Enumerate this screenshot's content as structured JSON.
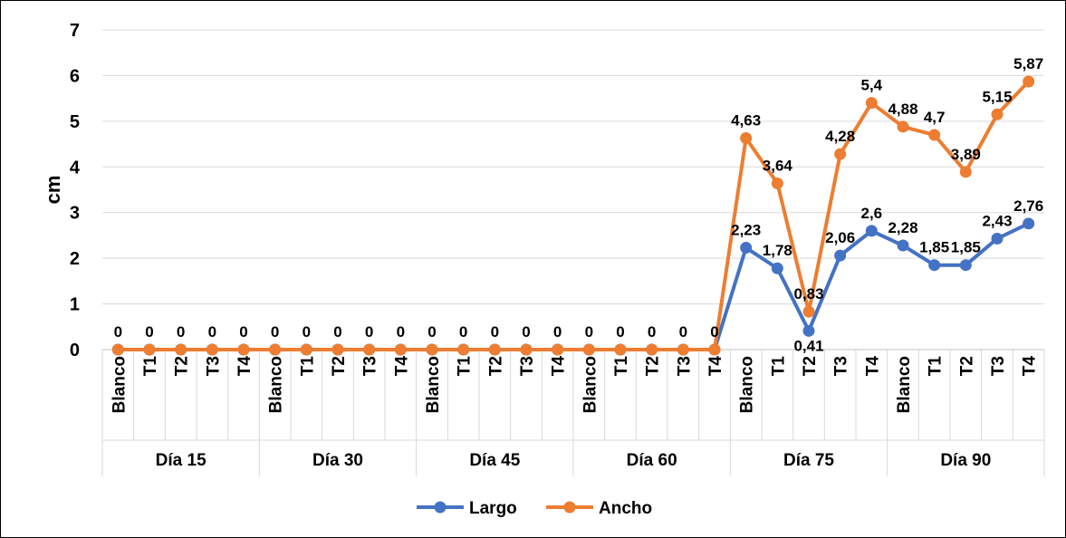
{
  "chart_data": {
    "type": "line",
    "ylabel": "cm",
    "ylim": [
      0,
      7
    ],
    "yticks": [
      0,
      1,
      2,
      3,
      4,
      5,
      6,
      7
    ],
    "grid": "horizontal",
    "legend_position": "bottom",
    "groups": [
      {
        "label": "Día 15",
        "categories": [
          "Blanco",
          "T1",
          "T2",
          "T3",
          "T4"
        ]
      },
      {
        "label": "Día 30",
        "categories": [
          "Blanco",
          "T1",
          "T2",
          "T3",
          "T4"
        ]
      },
      {
        "label": "Día 45",
        "categories": [
          "Blanco",
          "T1",
          "T2",
          "T3",
          "T4"
        ]
      },
      {
        "label": "Día 60",
        "categories": [
          "Blanco",
          "T1",
          "T2",
          "T3",
          "T4"
        ]
      },
      {
        "label": "Día 75",
        "categories": [
          "Blanco",
          "T1",
          "T2",
          "T3",
          "T4"
        ]
      },
      {
        "label": "Día 90",
        "categories": [
          "Blanco",
          "T1",
          "T2",
          "T3",
          "T4"
        ]
      }
    ],
    "series": [
      {
        "name": "Largo",
        "color": "#4472C4",
        "values": [
          0,
          0,
          0,
          0,
          0,
          0,
          0,
          0,
          0,
          0,
          0,
          0,
          0,
          0,
          0,
          0,
          0,
          0,
          0,
          0,
          2.23,
          1.78,
          0.41,
          2.06,
          2.6,
          2.28,
          1.85,
          1.85,
          2.43,
          2.76
        ],
        "labels": [
          "",
          "",
          "",
          "",
          "",
          "",
          "",
          "",
          "",
          "",
          "",
          "",
          "",
          "",
          "",
          "",
          "",
          "",
          "",
          "",
          "2,23",
          "1,78",
          "0,41",
          "2,06",
          "2,6",
          "2,28",
          "1,85",
          "1,85",
          "2,43",
          "2,76"
        ]
      },
      {
        "name": "Ancho",
        "color": "#ED7D31",
        "values": [
          0,
          0,
          0,
          0,
          0,
          0,
          0,
          0,
          0,
          0,
          0,
          0,
          0,
          0,
          0,
          0,
          0,
          0,
          0,
          0,
          4.63,
          3.64,
          0.83,
          4.28,
          5.4,
          4.88,
          4.7,
          3.89,
          5.15,
          5.87
        ],
        "labels": [
          "0",
          "0",
          "0",
          "0",
          "0",
          "0",
          "0",
          "0",
          "0",
          "0",
          "0",
          "0",
          "0",
          "0",
          "0",
          "0",
          "0",
          "0",
          "0",
          "0",
          "4,63",
          "3,64",
          "0,83",
          "4,28",
          "5,4",
          "4,88",
          "4,7",
          "3,89",
          "5,15",
          "5,87"
        ]
      }
    ]
  }
}
